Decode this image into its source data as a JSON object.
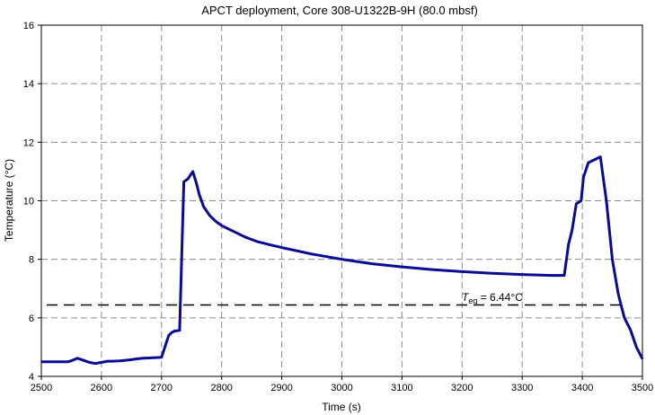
{
  "chart_data": {
    "type": "line",
    "title": "APCT deployment, Core 308-U1322B-9H (80.0 mbsf)",
    "xlabel": "Time (s)",
    "ylabel": "Temperature (°C)",
    "xlim": [
      2500,
      3500
    ],
    "ylim": [
      4,
      16
    ],
    "x_ticks": [
      2500,
      2600,
      2700,
      2800,
      2900,
      3000,
      3100,
      3200,
      3300,
      3400,
      3500
    ],
    "y_ticks": [
      4,
      6,
      8,
      10,
      12,
      14,
      16
    ],
    "grid": true,
    "legend": "none",
    "line_color": "#0a0a96",
    "series": [
      {
        "x": [
          2500,
          2520,
          2545,
          2552,
          2560,
          2570,
          2580,
          2590,
          2600,
          2610,
          2620,
          2630,
          2640,
          2650,
          2660,
          2670,
          2680,
          2690,
          2700,
          2707,
          2712,
          2717,
          2722,
          2730,
          2737,
          2744,
          2752,
          2758,
          2763,
          2770,
          2780,
          2790,
          2800,
          2820,
          2840,
          2860,
          2880,
          2900,
          2950,
          3000,
          3050,
          3100,
          3150,
          3200,
          3250,
          3300,
          3350,
          3370,
          3377,
          3383,
          3390,
          3398,
          3402,
          3410,
          3420,
          3430,
          3440,
          3450,
          3460,
          3470,
          3480,
          3490,
          3500
        ],
        "y": [
          4.5,
          4.5,
          4.5,
          4.55,
          4.62,
          4.55,
          4.48,
          4.44,
          4.48,
          4.52,
          4.52,
          4.53,
          4.55,
          4.57,
          4.6,
          4.62,
          4.63,
          4.64,
          4.65,
          5.1,
          5.4,
          5.5,
          5.55,
          5.57,
          10.65,
          10.75,
          11.0,
          10.6,
          10.2,
          9.8,
          9.5,
          9.3,
          9.15,
          8.95,
          8.75,
          8.6,
          8.5,
          8.4,
          8.18,
          8.0,
          7.85,
          7.74,
          7.65,
          7.58,
          7.52,
          7.48,
          7.45,
          7.45,
          8.5,
          9.0,
          9.9,
          10.0,
          10.8,
          11.3,
          11.4,
          11.5,
          10.0,
          8.0,
          6.8,
          6.0,
          5.6,
          5.0,
          4.6
        ]
      }
    ],
    "annotation": {
      "label_var": "T",
      "label_sub": "eq",
      "label_rest": " = 6.44°C",
      "value": 6.44,
      "line_style": "dashed"
    }
  }
}
